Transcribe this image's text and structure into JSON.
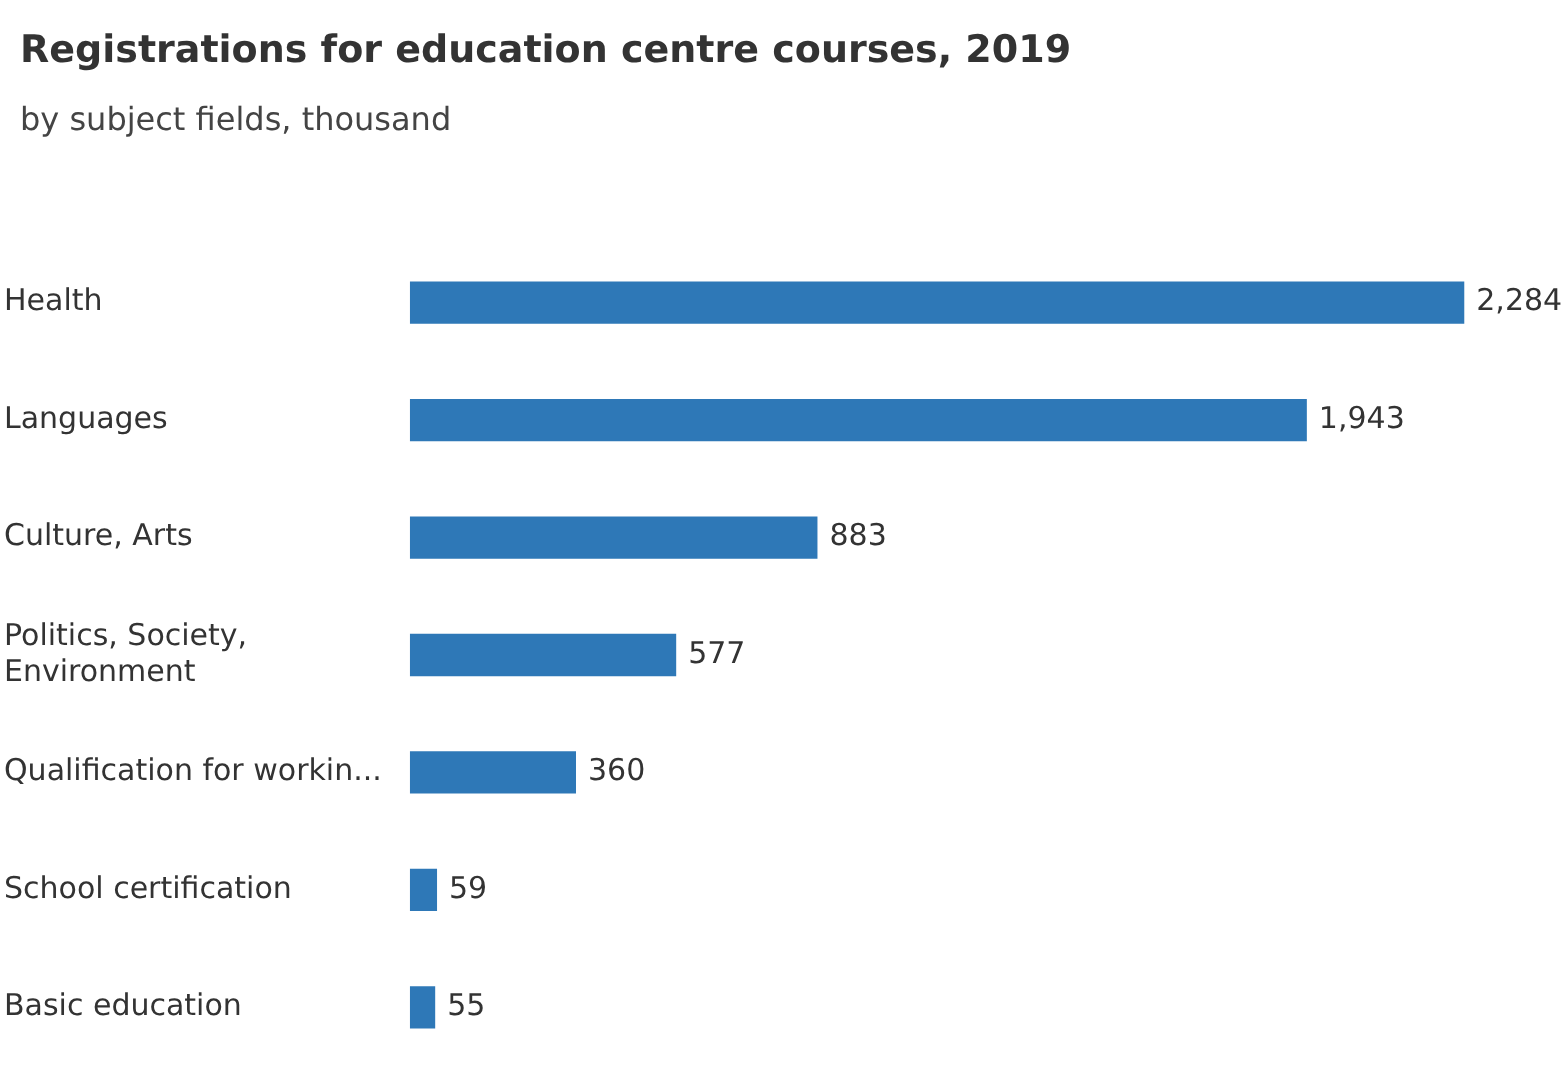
{
  "chart_data": {
    "type": "bar",
    "orientation": "horizontal",
    "title": "Registrations for education centre courses, 2019",
    "subtitle": "by subject fields, thousand",
    "categories": [
      "Health",
      "Languages",
      "Culture, Arts",
      "Politics, Society, Environment",
      "Qualification for workin...",
      "School certification",
      "Basic education"
    ],
    "values": [
      2284,
      1943,
      883,
      577,
      360,
      59,
      55
    ],
    "value_labels": [
      "2,284",
      "1,943",
      "883",
      "577",
      "360",
      "59",
      "55"
    ],
    "color": "#2e78b7",
    "legend": false
  }
}
